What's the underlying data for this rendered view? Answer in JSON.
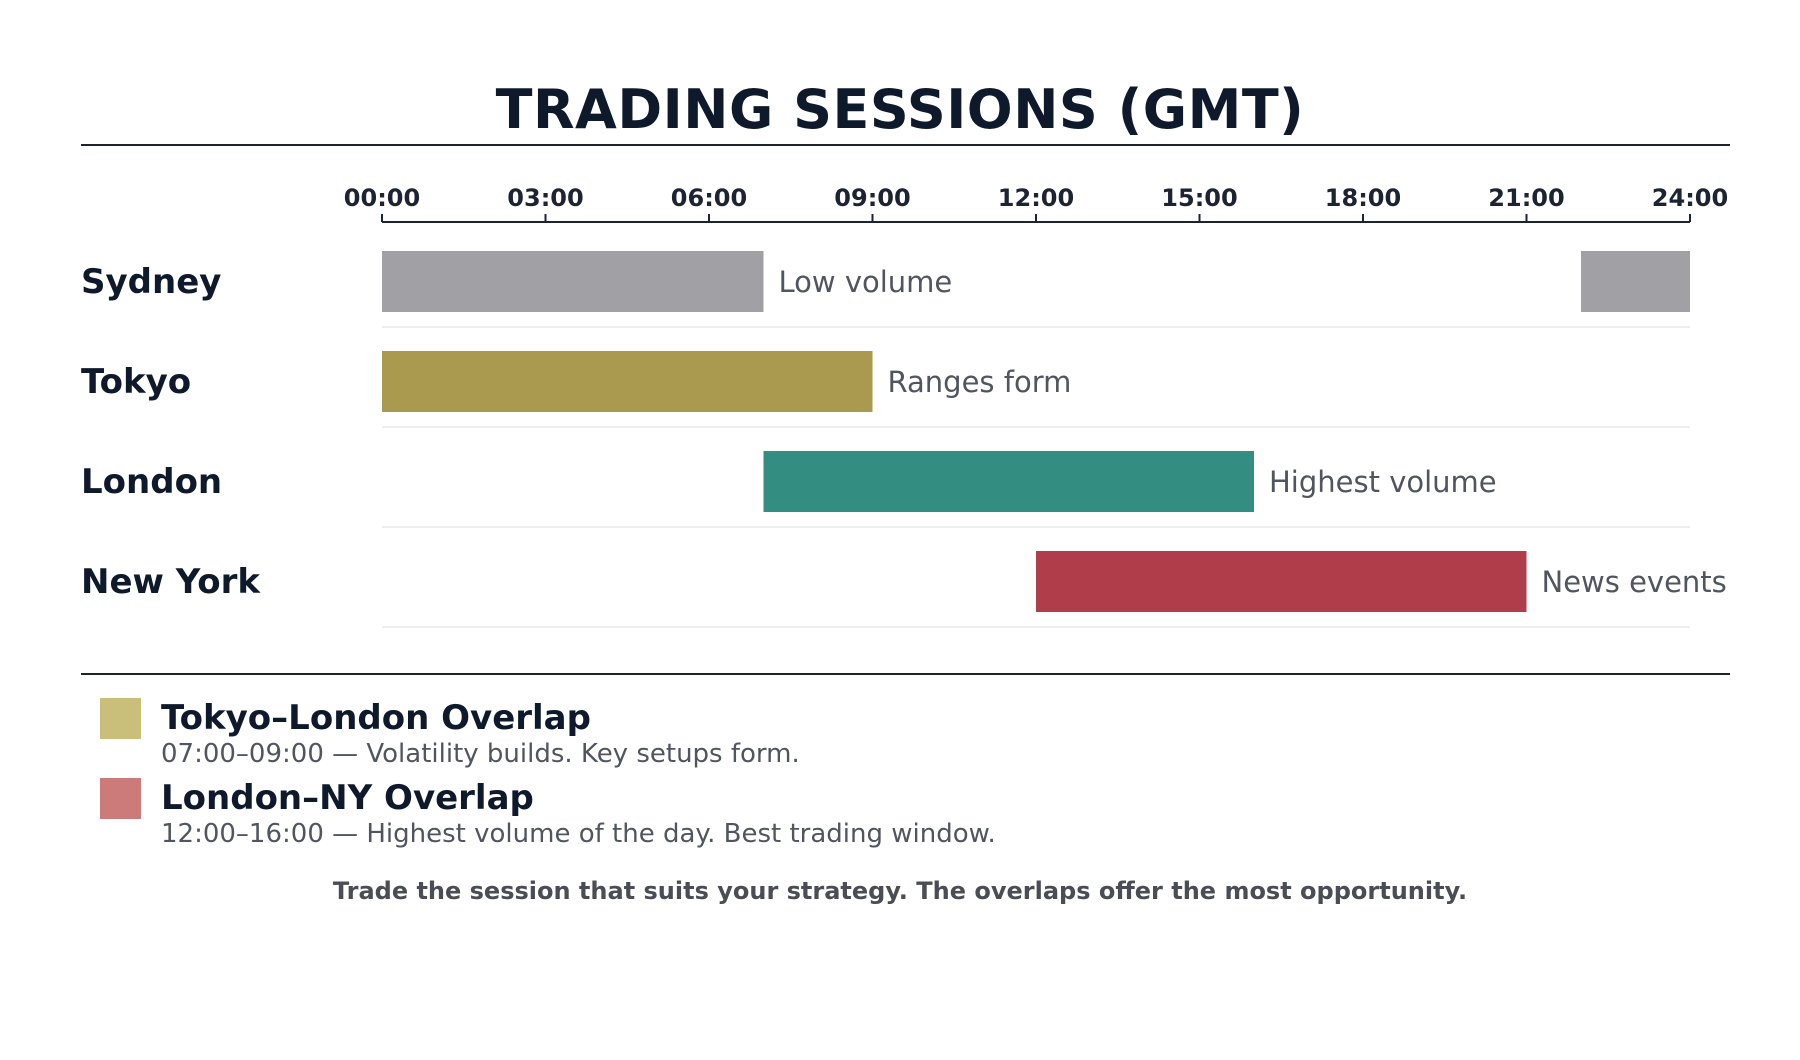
{
  "chart_data": {
    "type": "bar",
    "title": "TRADING SESSIONS (GMT)",
    "x_range": [
      0,
      24
    ],
    "x_tick_labels": [
      "00:00",
      "03:00",
      "06:00",
      "09:00",
      "12:00",
      "15:00",
      "18:00",
      "21:00",
      "24:00"
    ],
    "x_tick_values": [
      0,
      3,
      6,
      9,
      12,
      15,
      18,
      21,
      24
    ],
    "grid": false,
    "sessions": [
      {
        "name": "Sydney",
        "segments": [
          [
            0,
            7
          ],
          [
            22,
            24
          ]
        ],
        "note": "Low volume",
        "color": "#a0a0a5"
      },
      {
        "name": "Tokyo",
        "segments": [
          [
            0,
            9
          ]
        ],
        "note": "Ranges form",
        "color": "#a99a4f"
      },
      {
        "name": "London",
        "segments": [
          [
            7,
            16
          ]
        ],
        "note": "Highest volume",
        "color": "#338d80"
      },
      {
        "name": "New York",
        "segments": [
          [
            12,
            21
          ]
        ],
        "note": "News events",
        "color": "#b03d4a"
      }
    ]
  },
  "legend": [
    {
      "title": "Tokyo–London Overlap",
      "desc": "07:00–09:00 — Volatility builds. Key setups form.",
      "color": "#c9be7a"
    },
    {
      "title": "London–NY Overlap",
      "desc": "12:00–16:00 — Highest volume of the day. Best trading window.",
      "color": "#cc7a7a"
    }
  ],
  "footnote": "Trade the session that suits your strategy. The overlaps offer the most opportunity."
}
